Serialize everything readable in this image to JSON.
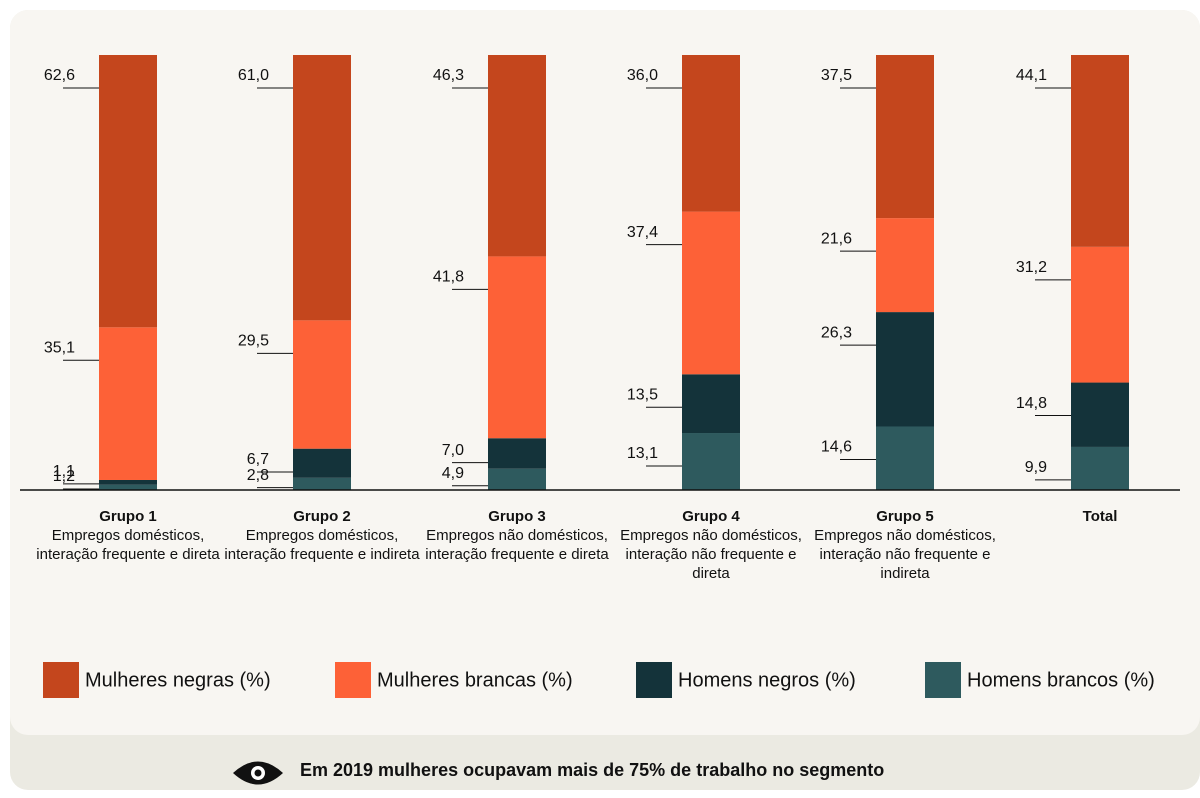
{
  "chart_data": {
    "type": "stacked_bar",
    "categories": [
      "Grupo 1",
      "Grupo 2",
      "Grupo 3",
      "Grupo 4",
      "Grupo 5",
      "Total"
    ],
    "category_descriptions": [
      "Empregos domésticos, interação frequente e direta",
      "Empregos domésticos, interação frequente e indireta",
      "Empregos não domésticos, interação frequente e direta",
      "Empregos não domésticos, interação não frequente e direta",
      "Empregos não domésticos, interação não frequente e indireta",
      null
    ],
    "ylim": [
      0,
      100
    ],
    "series": [
      {
        "name": "Mulheres negras (%)",
        "color": "#c4461d",
        "values": [
          62.6,
          61.0,
          46.3,
          36.0,
          37.5,
          44.1
        ],
        "value_labels": [
          "62,6",
          "61,0",
          "46,3",
          "36,0",
          "37,5",
          "44,1"
        ]
      },
      {
        "name": "Mulheres brancas (%)",
        "color": "#fd6137",
        "values": [
          35.1,
          29.5,
          41.8,
          37.4,
          21.6,
          31.2
        ],
        "value_labels": [
          "35,1",
          "29,5",
          "41,8",
          "37,4",
          "21,6",
          "31,2"
        ]
      },
      {
        "name": "Homens negros (%)",
        "color": "#14333a",
        "values": [
          1.1,
          6.7,
          7.0,
          13.5,
          26.3,
          14.8
        ],
        "value_labels": [
          "1,1",
          "6,7",
          "7,0",
          "13,5",
          "26,3",
          "14,8"
        ]
      },
      {
        "name": "Homens brancos (%)",
        "color": "#2e5a5e",
        "values": [
          1.2,
          2.8,
          4.9,
          13.1,
          14.6,
          9.9
        ],
        "value_labels": [
          "1,2",
          "2,8",
          "4,9",
          "13,1",
          "14,6",
          "9,9"
        ]
      }
    ],
    "footer_note": "Em 2019 mulheres ocupavam mais de 75% de trabalho no segmento"
  }
}
